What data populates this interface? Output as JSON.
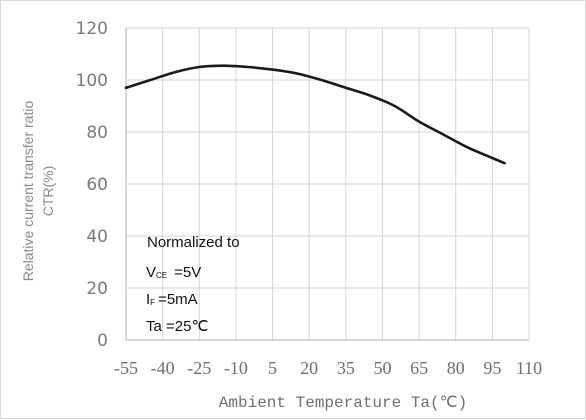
{
  "chart_data": {
    "type": "line",
    "title": "",
    "xlabel": "Ambient Temperature Ta(℃)",
    "ylabel_lines": [
      "Relative current transfer ratio",
      "CTR(%)"
    ],
    "x_ticks": [
      "-55",
      "-40",
      "-25",
      "-10",
      "5",
      "20",
      "35",
      "50",
      "65",
      "80",
      "95",
      "110"
    ],
    "y_ticks": [
      "0",
      "20",
      "40",
      "60",
      "80",
      "100",
      "120"
    ],
    "xlim": [
      -55,
      110
    ],
    "ylim": [
      0,
      120
    ],
    "grid": true,
    "series": [
      {
        "x": [
          -55,
          -45,
          -35,
          -25,
          -15,
          -5,
          5,
          15,
          25,
          35,
          45,
          55,
          65,
          75,
          85,
          95,
          100
        ],
        "y": [
          97,
          100,
          103,
          105,
          105.5,
          105,
          104,
          102.5,
          100,
          97,
          94,
          90,
          84,
          79,
          74,
          70,
          68
        ]
      }
    ],
    "annotation": {
      "line1": "Normalized to",
      "vce_symbol": "V",
      "vce_sub": "CE",
      "vce_value": "=5V",
      "if_symbol": "I",
      "if_sub": "F",
      "if_value": "=5mA",
      "ta_text": "Ta =25℃"
    },
    "colors": {
      "line": "#1a1a1a",
      "grid": "#d4d4d4",
      "axis": "#bfbfbf"
    }
  }
}
